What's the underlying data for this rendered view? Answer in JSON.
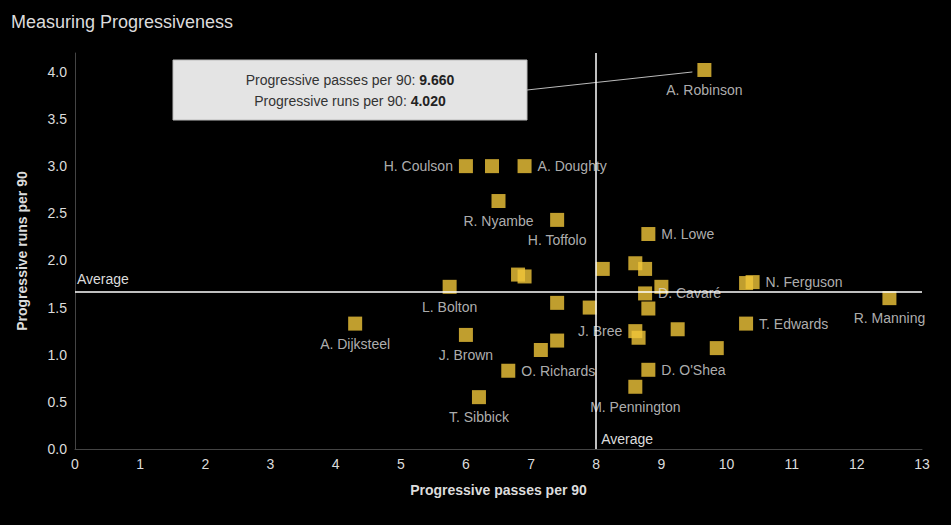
{
  "chart_data": {
    "type": "scatter",
    "title": "Measuring Progressiveness",
    "x_label": "Progressive passes per 90",
    "y_label": "Progressive runs per 90",
    "color": "#f0c63a",
    "marker": "square",
    "grid": false,
    "xlim": [
      0,
      13
    ],
    "xticks": [
      0,
      1,
      2,
      3,
      4,
      5,
      6,
      7,
      8,
      9,
      10,
      11,
      12,
      13
    ],
    "ylim": [
      0,
      4.2
    ],
    "yticks": [
      {
        "value": 0,
        "label": "0.0"
      },
      0.5,
      {
        "value": 1,
        "label": "1.0"
      },
      1.5,
      {
        "value": 2,
        "label": "2.0"
      },
      2.5,
      {
        "value": 3,
        "label": "3.0"
      },
      3.5,
      {
        "value": 4,
        "label": "4.0"
      }
    ],
    "point_labels": [
      "A. Robinson",
      "H. Coulson",
      null,
      "A. Doughty",
      "R. Nyambe",
      "H. Toffolo",
      "M. Lowe",
      null,
      null,
      null,
      null,
      null,
      "L. Bolton",
      null,
      null,
      "N. Ferguson",
      "R. Manning",
      "D. Cavaré",
      null,
      null,
      null,
      "T. Edwards",
      "A. Dijksteel",
      "J. Bree",
      null,
      null,
      "J. Brown",
      null,
      null,
      null,
      "O. Richards",
      "D. O'Shea",
      "M. Pennington",
      "T. Sibbick"
    ],
    "x": [
      9.66,
      6.0,
      6.4,
      6.9,
      6.5,
      7.4,
      8.8,
      8.1,
      8.6,
      8.75,
      6.8,
      6.9,
      5.75,
      9.0,
      10.3,
      10.4,
      12.5,
      8.75,
      7.4,
      7.9,
      8.8,
      10.3,
      4.3,
      8.6,
      8.65,
      9.25,
      6.0,
      7.4,
      7.15,
      9.85,
      6.65,
      8.8,
      8.6,
      6.2
    ],
    "values": [
      4.02,
      3.0,
      3.0,
      3.0,
      2.63,
      2.43,
      2.28,
      1.91,
      1.97,
      1.91,
      1.85,
      1.83,
      1.72,
      1.72,
      1.76,
      1.77,
      1.6,
      1.65,
      1.55,
      1.5,
      1.49,
      1.33,
      1.33,
      1.25,
      1.18,
      1.27,
      1.21,
      1.15,
      1.05,
      1.07,
      0.83,
      0.84,
      0.66,
      0.55
    ],
    "averages": {
      "x": 8,
      "y": 1.67,
      "label": "Average"
    },
    "annotation": {
      "target": "A. Robinson",
      "lines": [
        {
          "text": "Progressive passes per 90:",
          "value": 9.66,
          "label": "9.660"
        },
        {
          "text": "Progressive runs per 90:",
          "value": 4.02,
          "label": "4.020"
        }
      ]
    }
  }
}
